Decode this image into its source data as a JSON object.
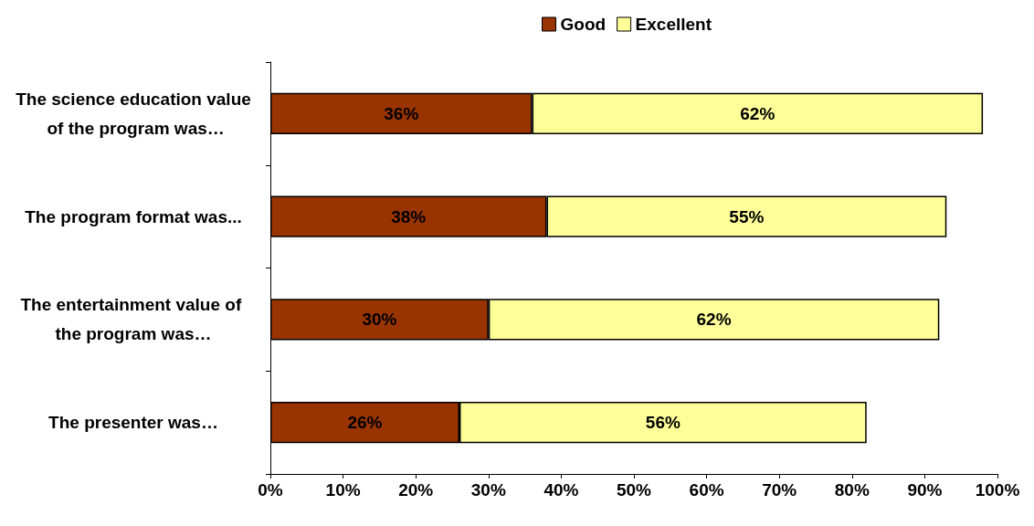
{
  "chart_data": {
    "type": "bar",
    "orientation": "horizontal",
    "stacked": true,
    "categories": [
      "The science education value of the program was…",
      "The program format was...",
      "The entertainment value of the program was…",
      "The presenter was…"
    ],
    "series": [
      {
        "name": "Good",
        "color": "#993300",
        "values": [
          36,
          38,
          30,
          26
        ],
        "value_labels": [
          "36%",
          "38%",
          "30%",
          "26%"
        ]
      },
      {
        "name": "Excellent",
        "color": "#ffff99",
        "values": [
          62,
          55,
          62,
          56
        ],
        "value_labels": [
          "62%",
          "55%",
          "62%",
          "56%"
        ]
      }
    ],
    "xlim": [
      0,
      100
    ],
    "xticks": [
      {
        "value": 0,
        "label": "0%"
      },
      {
        "value": 10,
        "label": "10%"
      },
      {
        "value": 20,
        "label": "20%"
      },
      {
        "value": 30,
        "label": "30%"
      },
      {
        "value": 40,
        "label": "40%"
      },
      {
        "value": 50,
        "label": "50%"
      },
      {
        "value": 60,
        "label": "60%"
      },
      {
        "value": 70,
        "label": "70%"
      },
      {
        "value": 80,
        "label": "80%"
      },
      {
        "value": 90,
        "label": "90%"
      },
      {
        "value": 100,
        "label": "100%"
      }
    ],
    "grid": false,
    "legend": "top"
  }
}
